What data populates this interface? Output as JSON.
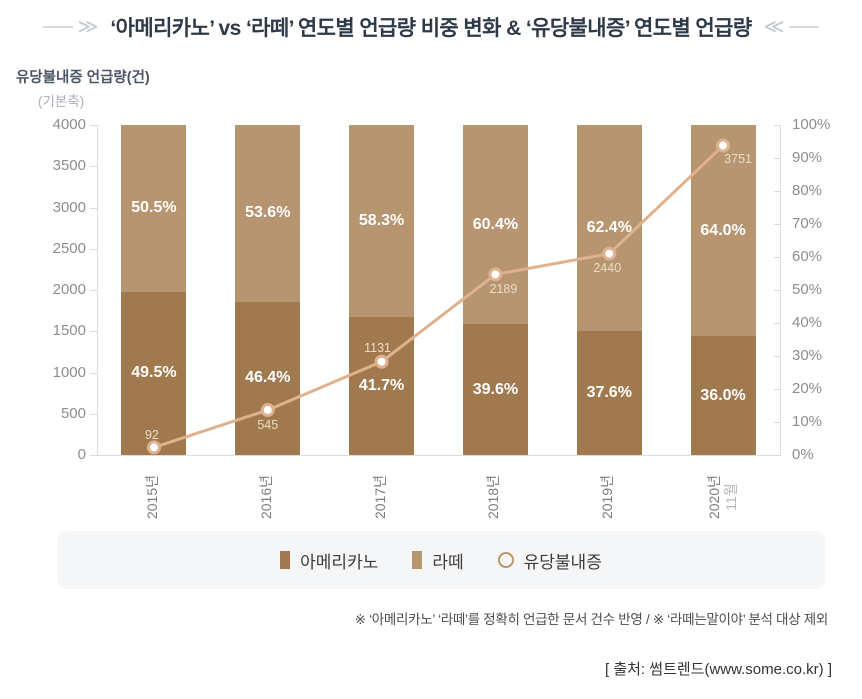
{
  "title": {
    "text": "‘아메리카노’ vs ‘라떼’ 연도별 언급량 비중 변화 & ‘유당불내증’ 연도별 언급량",
    "left_decoration": "≫",
    "right_decoration": "≪"
  },
  "footnote": "※ ‘아메리카노’ ‘라떼’를 정확히 언급한 문서 건수 반영  /  ※ ‘라떼는말이야’ 분석 대상 제외",
  "source": "[ 출처: 썸트렌드(www.some.co.kr) ]",
  "legend": {
    "items": [
      {
        "label": "아메리카노",
        "swatch": "square",
        "color": "#a1794f"
      },
      {
        "label": "라떼",
        "swatch": "square",
        "color": "#b69570"
      },
      {
        "label": "유당불내증",
        "swatch": "circle",
        "color": "#bd9468"
      }
    ]
  },
  "chart_data": {
    "type": "bar",
    "subtype": "stacked-100-bar-with-line",
    "categories": [
      {
        "label": "2015년"
      },
      {
        "label": "2016년"
      },
      {
        "label": "2017년"
      },
      {
        "label": "2018년"
      },
      {
        "label": "2019년"
      },
      {
        "label": "2020년",
        "sublabel": "11월"
      }
    ],
    "series": [
      {
        "name": "아메리카노",
        "type": "bar",
        "unit": "%",
        "color": "#a1794f",
        "values": [
          49.5,
          46.4,
          41.7,
          39.6,
          37.6,
          36.0
        ]
      },
      {
        "name": "라떼",
        "type": "bar",
        "unit": "%",
        "color": "#b69570",
        "values": [
          50.5,
          53.6,
          58.3,
          60.4,
          62.4,
          64.0
        ]
      },
      {
        "name": "유당불내증",
        "type": "line",
        "axis": "left",
        "color": "#dfb28d",
        "values": [
          92,
          545,
          1131,
          2189,
          2440,
          3751
        ],
        "label_offsets": [
          [
            -2,
            -12
          ],
          [
            0,
            15
          ],
          [
            -4,
            -14
          ],
          [
            8,
            15
          ],
          [
            -2,
            14
          ],
          [
            15,
            13
          ]
        ]
      }
    ],
    "left_axis": {
      "label": "유당불내증 언급량(건)",
      "sublabel": "(기본축)",
      "min": 0,
      "max": 4000,
      "step": 500
    },
    "right_axis": {
      "min": 0,
      "max": 100,
      "step": 10,
      "suffix": "%"
    },
    "grid": false,
    "legend_position": "bottom"
  }
}
